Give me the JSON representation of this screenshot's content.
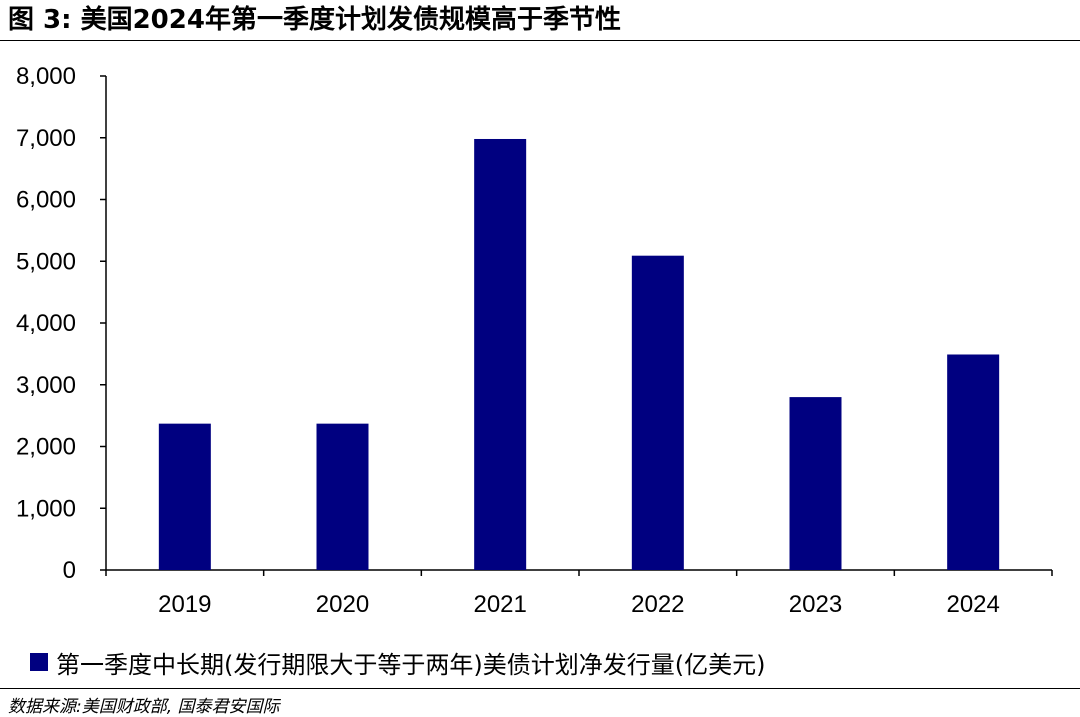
{
  "figure": {
    "title": "图 3:  美国2024年第一季度计划发债规模高于季节性",
    "source": "数据来源:美国财政部, 国泰君安国际"
  },
  "chart_data": {
    "type": "bar",
    "categories": [
      "2019",
      "2020",
      "2021",
      "2022",
      "2023",
      "2024"
    ],
    "series": [
      {
        "name": "第一季度中长期(发行期限大于等于两年)美债计划净发行量(亿美元)",
        "values": [
          2370,
          2370,
          6980,
          5090,
          2800,
          3490
        ],
        "color": "#000080"
      }
    ],
    "ylim": [
      0,
      8000
    ],
    "yticks": [
      "0",
      "1,000",
      "2,000",
      "3,000",
      "4,000",
      "5,000",
      "6,000",
      "7,000",
      "8,000"
    ],
    "grid": false,
    "legend_position": "bottom"
  }
}
